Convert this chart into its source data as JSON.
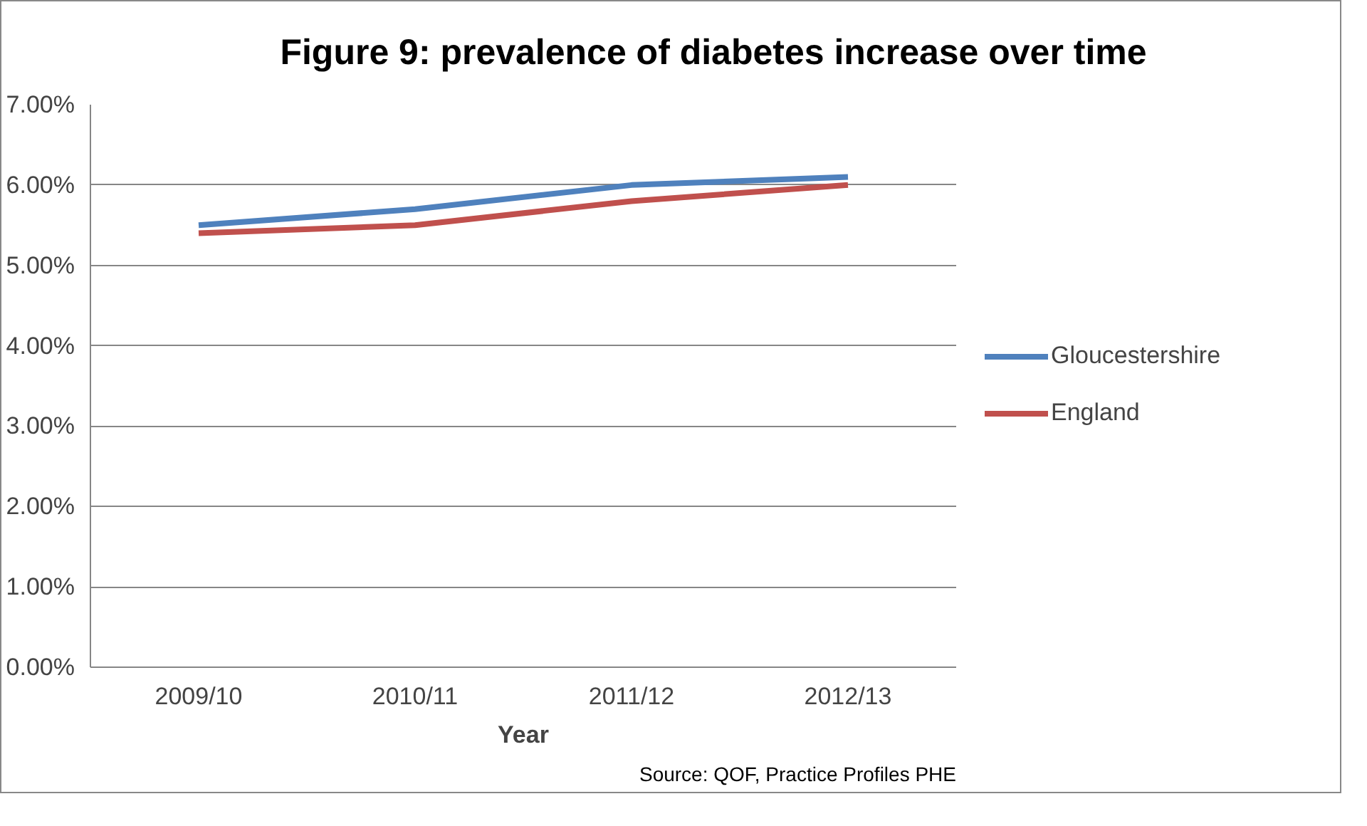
{
  "chart_data": {
    "type": "line",
    "title": "Figure 9: prevalence of diabetes increase over time",
    "xlabel": "Year",
    "categories": [
      "2009/10",
      "2010/11",
      "2011/12",
      "2012/13"
    ],
    "series": [
      {
        "name": "Gloucestershire",
        "color": "#4f81bd",
        "values": [
          5.5,
          5.7,
          6.0,
          6.1
        ]
      },
      {
        "name": "England",
        "color": "#c0504d",
        "values": [
          5.4,
          5.5,
          5.8,
          6.0
        ]
      }
    ],
    "ylim": [
      0,
      7
    ],
    "yticks": [
      {
        "value": 0,
        "label": "0.00%"
      },
      {
        "value": 1,
        "label": "1.00%"
      },
      {
        "value": 2,
        "label": "2.00%"
      },
      {
        "value": 3,
        "label": "3.00%"
      },
      {
        "value": 4,
        "label": "4.00%"
      },
      {
        "value": 5,
        "label": "5.00%"
      },
      {
        "value": 6,
        "label": "6.00%"
      },
      {
        "value": 7,
        "label": "7.00%"
      }
    ],
    "grid": "y",
    "legend": "right",
    "marker": "none",
    "line_style": "solid",
    "annotations": [
      "Source: QOF, Practice Profiles PHE"
    ]
  }
}
